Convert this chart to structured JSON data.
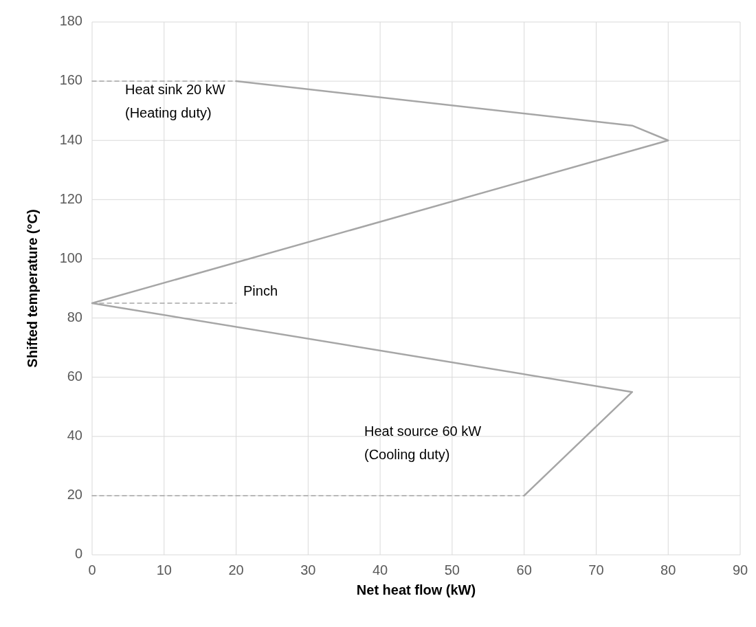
{
  "chart_data": {
    "type": "line",
    "xlabel": "Net heat flow (kW)",
    "ylabel": "Shifted temperature (°C)",
    "series": [
      {
        "color": "#a6a6a6",
        "x": [
          20,
          75,
          80,
          0,
          75,
          60
        ],
        "values": [
          160,
          145,
          140,
          85,
          55,
          20
        ],
        "line_style": "solid"
      },
      {
        "color": "#a6a6a6",
        "x": [
          0,
          20
        ],
        "values": [
          160,
          160
        ],
        "line_style": "dashed"
      },
      {
        "color": "#a6a6a6",
        "x": [
          0,
          20
        ],
        "values": [
          85,
          85
        ],
        "line_style": "dashed"
      },
      {
        "color": "#a6a6a6",
        "x": [
          0,
          60
        ],
        "values": [
          20,
          20
        ],
        "line_style": "dashed"
      }
    ],
    "xlim": [
      0,
      90
    ],
    "xticks": [
      0,
      10,
      20,
      30,
      40,
      50,
      60,
      70,
      80,
      90
    ],
    "ylim": [
      0,
      180
    ],
    "yticks": [
      0,
      20,
      40,
      60,
      80,
      100,
      120,
      140,
      160,
      180
    ],
    "grid": true,
    "marker": "none",
    "annotations": [
      "Heat sink 20 kW\n(Heating duty)",
      "Pinch",
      "Heat source 60 kW\n(Cooling duty)"
    ]
  }
}
